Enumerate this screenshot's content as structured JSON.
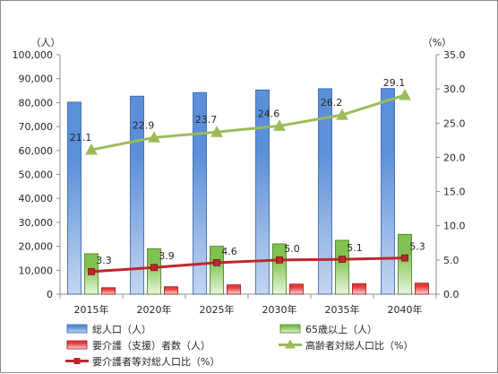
{
  "chart_data": {
    "type": "bar",
    "categories": [
      "2015年",
      "2020年",
      "2025年",
      "2030年",
      "2035年",
      "2040年"
    ],
    "left_axis": {
      "unit": "（人）",
      "range": [
        0,
        100000
      ],
      "ticks": [
        "0",
        "10,000",
        "20,000",
        "30,000",
        "40,000",
        "50,000",
        "60,000",
        "70,000",
        "80,000",
        "90,000",
        "100,000"
      ]
    },
    "right_axis": {
      "unit": "（%）",
      "range": [
        0,
        35
      ],
      "ticks": [
        "0.0",
        "5.0",
        "10.0",
        "15.0",
        "20.0",
        "25.0",
        "30.0",
        "35.0"
      ]
    },
    "bar_series": [
      {
        "name": "総人口（人）",
        "axis": "left",
        "values": [
          80200,
          82700,
          84200,
          85300,
          85800,
          85900
        ],
        "colors": [
          "#c3d6f0",
          "#5b8fd9",
          "#2f5fa8"
        ]
      },
      {
        "name": "65歳以上（人）",
        "axis": "left",
        "values": [
          16900,
          19000,
          20000,
          21000,
          22500,
          25000
        ],
        "colors": [
          "#e8f5dc",
          "#7fc24f",
          "#3f7a1f"
        ]
      },
      {
        "name": "要介護（支援）者数（人）",
        "axis": "left",
        "values": [
          2700,
          3100,
          3900,
          4200,
          4400,
          4600
        ],
        "colors": [
          "#f8d7d7",
          "#e53b3b",
          "#9b1010"
        ]
      }
    ],
    "line_series": [
      {
        "name": "高齢者対総人口比（%）",
        "axis": "right",
        "values": [
          21.1,
          22.9,
          23.7,
          24.6,
          26.2,
          29.1
        ],
        "labels": [
          "21.1",
          "22.9",
          "23.7",
          "24.6",
          "26.2",
          "29.1"
        ],
        "color": "#9bbb59",
        "marker": "triangle"
      },
      {
        "name": "要介護者等対総人口比（%）",
        "axis": "right",
        "values": [
          3.3,
          3.9,
          4.6,
          5.0,
          5.1,
          5.3
        ],
        "labels": [
          "3.3",
          "3.9",
          "4.6",
          "5.0",
          "5.1",
          "5.3"
        ],
        "color": "#c0262e",
        "marker": "square"
      }
    ],
    "legend_position": "bottom",
    "gridlines": false
  }
}
